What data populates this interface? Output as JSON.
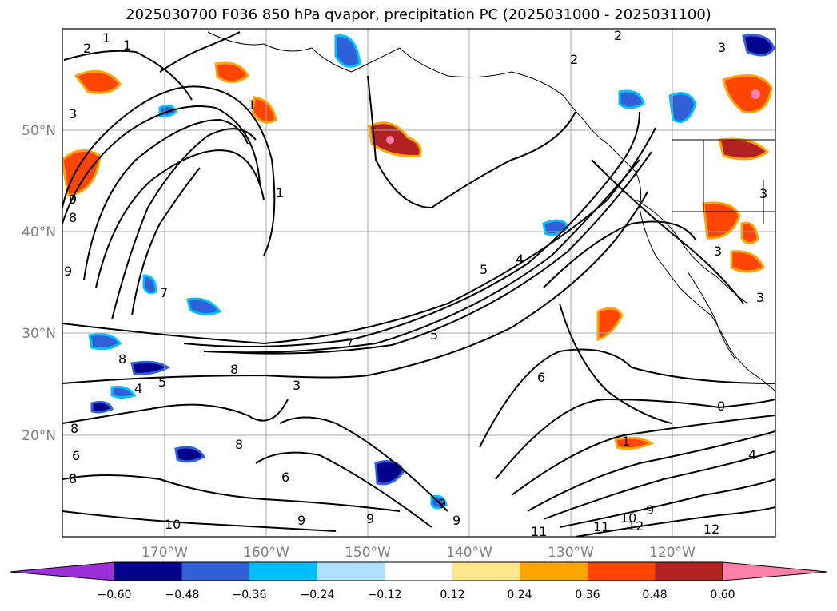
{
  "title": "2025030700 F036 850 hPa qvapor, precipitation PC (2025031000 - 2025031100)",
  "lat_labels": [
    "50°N",
    "40°N",
    "30°N",
    "20°N"
  ],
  "lon_labels": [
    "170°W",
    "160°W",
    "150°W",
    "140°W",
    "130°W",
    "120°W"
  ],
  "colorbar": {
    "colors": [
      "#9b30d8",
      "#00008b",
      "#3060d8",
      "#00bfff",
      "#b0e0ff",
      "#ffffff",
      "#ffe88c",
      "#ffa500",
      "#ff4500",
      "#b22222",
      "#ff80aa"
    ],
    "ticks": [
      "−0.60",
      "−0.48",
      "−0.36",
      "−0.24",
      "−0.12",
      "0.12",
      "0.24",
      "0.36",
      "0.48",
      "0.60"
    ]
  },
  "contour_labels": [
    {
      "text": "1"
    },
    {
      "text": "2"
    },
    {
      "text": "1"
    },
    {
      "text": "3"
    },
    {
      "text": "9"
    },
    {
      "text": "8"
    },
    {
      "text": "1"
    },
    {
      "text": "8"
    },
    {
      "text": "8"
    },
    {
      "text": "4"
    },
    {
      "text": "5"
    },
    {
      "text": "7"
    },
    {
      "text": "7"
    },
    {
      "text": "5"
    },
    {
      "text": "5"
    },
    {
      "text": "4"
    },
    {
      "text": "3"
    },
    {
      "text": "6"
    },
    {
      "text": "8"
    },
    {
      "text": "10"
    },
    {
      "text": "9"
    },
    {
      "text": "9"
    },
    {
      "text": "9"
    },
    {
      "text": "9"
    },
    {
      "text": "11"
    },
    {
      "text": "11"
    },
    {
      "text": "10"
    },
    {
      "text": "9"
    },
    {
      "text": "12"
    },
    {
      "text": "12"
    },
    {
      "text": "0"
    },
    {
      "text": "1"
    },
    {
      "text": "4"
    },
    {
      "text": "2"
    },
    {
      "text": "2"
    },
    {
      "text": "3"
    },
    {
      "text": "3"
    },
    {
      "text": "3"
    },
    {
      "text": "3"
    },
    {
      "text": "6"
    },
    {
      "text": "8"
    },
    {
      "text": "6"
    },
    {
      "text": "1"
    },
    {
      "text": "8"
    },
    {
      "text": "9"
    }
  ]
}
